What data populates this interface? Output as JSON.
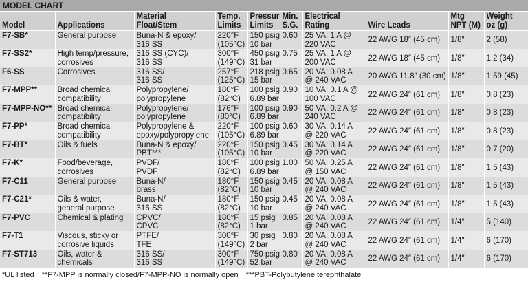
{
  "title": "MODEL CHART",
  "headers": {
    "model": [
      "",
      "Model"
    ],
    "applications": [
      "",
      "Applications"
    ],
    "material": [
      "Material",
      "Float/Stem"
    ],
    "temp": [
      "Temp.",
      "Limits"
    ],
    "pressure": [
      "Pressure",
      "Limits"
    ],
    "sg": [
      "Min.",
      "S.G."
    ],
    "electrical": [
      "Electrical",
      "Rating"
    ],
    "wire": [
      "",
      "Wire Leads"
    ],
    "mtg": [
      "Mtg",
      "NPT (M)"
    ],
    "weight": [
      "Weight",
      "oz (g)"
    ]
  },
  "rows": [
    {
      "model": "F7-SB*",
      "app": [
        "General purpose",
        ""
      ],
      "material": [
        "Buna-N & epoxy/",
        "316 SS"
      ],
      "temp": [
        "220°F",
        "(105°C)"
      ],
      "pressure": [
        "150 psig",
        "10 bar"
      ],
      "sg": "0.60",
      "elec": [
        "25 VA: 1 A @",
        "220 VAC"
      ],
      "wire": "22 AWG 18″ (45 cm)",
      "mtg": "1/8″",
      "weight": "2 (58)"
    },
    {
      "model": "F7-SS2*",
      "app": [
        "High temp/pressure,",
        "corrosives"
      ],
      "material": [
        "316 SS (CYC)/",
        "316 SS"
      ],
      "temp": [
        "300°F",
        "(149°C)"
      ],
      "pressure": [
        "450 psig",
        "31 bar"
      ],
      "sg": "0.75",
      "elec": [
        "25 VA: 1 A @",
        "200 VAC"
      ],
      "wire": "22 AWG 18″ (45 cm)",
      "mtg": "1/8″",
      "weight": "1.2 (34)"
    },
    {
      "model": "F6-SS",
      "app": [
        "Corrosives",
        ""
      ],
      "material": [
        "316 SS/",
        "316 SS"
      ],
      "temp": [
        "257°F",
        "(125°C)"
      ],
      "pressure": [
        "218 psig",
        "15 bar"
      ],
      "sg": "0.65",
      "elec": [
        "20 VA: 0.08 A",
        "@ 240 VAC"
      ],
      "wire": "20 AWG 11.8″ (30 cm)",
      "mtg": "1/8″",
      "weight": "1.59 (45)"
    },
    {
      "model": "F7-MPP**",
      "app": [
        "Broad chemical",
        "compatibility"
      ],
      "material": [
        "Polypropylene/",
        "polypropylene"
      ],
      "temp": [
        "180°F",
        "(82°C)"
      ],
      "pressure": [
        "100 psig",
        "6.89 bar"
      ],
      "sg": "0.90",
      "elec": [
        "10 VA: 0.1 A @",
        "100 VAC"
      ],
      "wire": "22 AWG 24″ (61 cm)",
      "mtg": "1/8″",
      "weight": "0.8 (23)"
    },
    {
      "model": "F7-MPP-NO**",
      "app": [
        "Broad chemical",
        "compatibility"
      ],
      "material": [
        "Polypropylene/",
        "polypropylene"
      ],
      "temp": [
        "176°F",
        "(80°C)"
      ],
      "pressure": [
        "100 psig",
        "6.89 bar"
      ],
      "sg": "0.90",
      "elec": [
        "50 VA: 0.2 A @",
        "240 VAC"
      ],
      "wire": "22 AWG 24″ (61 cm)",
      "mtg": "1/8″",
      "weight": "0.8 (23)"
    },
    {
      "model": "F7-PP*",
      "app": [
        "Broad chemical",
        "compatibility"
      ],
      "material": [
        "Polypropylene &",
        "epoxy/polypropylene"
      ],
      "temp": [
        "220°F",
        "(105°C)"
      ],
      "pressure": [
        "100 psig",
        "6.89 bar"
      ],
      "sg": "0.60",
      "elec": [
        "30 VA: 0.14 A",
        "@ 220 VAC"
      ],
      "wire": "22 AWG 24″ (61 cm)",
      "mtg": "1/8″",
      "weight": "0.8 (23)"
    },
    {
      "model": "F7-BT*",
      "app": [
        "Oils & fuels",
        ""
      ],
      "material": [
        "Buna-N & epoxy/",
        "PBT***"
      ],
      "temp": [
        "220°F",
        "(105°C)"
      ],
      "pressure": [
        "150 psig",
        "10 bar"
      ],
      "sg": "0.45",
      "elec": [
        "30 VA: 0.14 A",
        "@ 220 VAC"
      ],
      "wire": "22 AWG 24″ (61 cm)",
      "mtg": "1/8″",
      "weight": "0.7 (20)"
    },
    {
      "model": "F7-K*",
      "app": [
        "Food/beverage,",
        "corrosives"
      ],
      "material": [
        "PVDF/",
        "PVDF"
      ],
      "temp": [
        "180°F",
        "(82°C)"
      ],
      "pressure": [
        "100 psig",
        "6.89 bar"
      ],
      "sg": "1.00",
      "elec": [
        "50 VA: 0.25 A",
        "@ 150 VAC"
      ],
      "wire": "22 AWG 24″ (61 cm)",
      "mtg": "1/8″",
      "weight": "1.5 (43)"
    },
    {
      "model": "F7-C11",
      "app": [
        "General purpose",
        ""
      ],
      "material": [
        "Buna-N/",
        "brass"
      ],
      "temp": [
        "180°F",
        "(82°C)"
      ],
      "pressure": [
        "150 psig",
        "10 bar"
      ],
      "sg": "0.45",
      "elec": [
        "20 VA: 0.08 A",
        "@ 240 VAC"
      ],
      "wire": "22 AWG 24″ (61 cm)",
      "mtg": "1/8″",
      "weight": "1.5 (43)"
    },
    {
      "model": "F7-C21*",
      "app": [
        "Oils & water,",
        "general purpose"
      ],
      "material": [
        "Buna-N/",
        "316 SS"
      ],
      "temp": [
        "180°F",
        "(82°C)"
      ],
      "pressure": [
        "150 psig",
        "10 bar"
      ],
      "sg": "0.45",
      "elec": [
        "20 VA: 0.08 A",
        "@ 240 VAC"
      ],
      "wire": "22 AWG 24″ (61 cm)",
      "mtg": "1/8″",
      "weight": "1.5 (43)"
    },
    {
      "model": "F7-PVC",
      "app": [
        "Chemical & plating",
        ""
      ],
      "material": [
        "CPVC/",
        "CPVC"
      ],
      "temp": [
        "180°F",
        "(82°C)"
      ],
      "pressure": [
        "15 psig",
        "1 bar"
      ],
      "sg": "0.85",
      "elec": [
        "20 VA: 0.08 A",
        "@ 240 VAC"
      ],
      "wire": "22 AWG 24″ (61 cm)",
      "mtg": "1/4″",
      "weight": "5 (140)"
    },
    {
      "model": "F7-T1",
      "app": [
        "Viscous, sticky or",
        "corrosive liquids"
      ],
      "material": [
        "PTFE/",
        "TFE"
      ],
      "temp": [
        "300°F",
        "(149°C)"
      ],
      "pressure": [
        "30 psig",
        "2 bar"
      ],
      "sg": "0.80",
      "elec": [
        "20 VA: 0.08 A",
        "@ 240 VAC"
      ],
      "wire": "22 AWG 24″ (61 cm)",
      "mtg": "1/4″",
      "weight": "6 (170)"
    },
    {
      "model": "F7-ST713",
      "app": [
        "Oils, water &",
        "chemicals"
      ],
      "material": [
        "316 SS/",
        "316 SS"
      ],
      "temp": [
        "300°F",
        "(149°C)"
      ],
      "pressure": [
        "750 psig",
        "52 bar"
      ],
      "sg": "0.80",
      "elec": [
        "20 VA: 0.08 A",
        "@ 240 VAC"
      ],
      "wire": "22 AWG 24″ (61 cm)",
      "mtg": "1/4″",
      "weight": "6 (170)"
    }
  ],
  "footnotes": [
    "*UL listed",
    "**F7-MPP is normally closed/F7-MPP-NO is normally open",
    "***PBT-Polybutylene terephthalate"
  ]
}
